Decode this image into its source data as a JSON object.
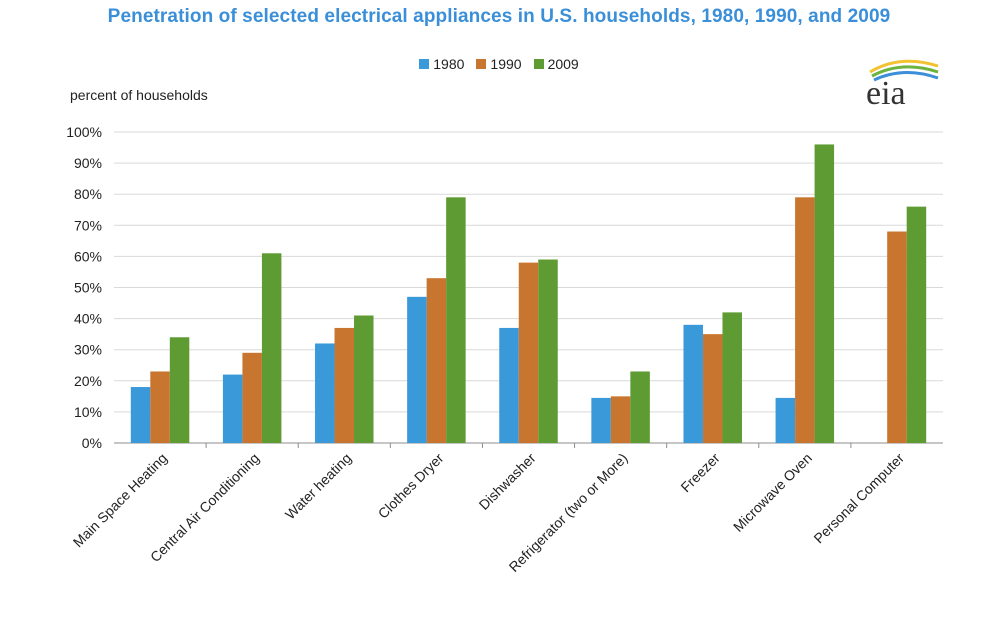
{
  "chart_data": {
    "type": "bar",
    "title": "Penetration of selected electrical appliances in U.S. households, 1980, 1990, and 2009",
    "ylabel": "percent of households",
    "xlabel": "",
    "ylim": [
      0,
      100
    ],
    "yticks": [
      "0%",
      "10%",
      "20%",
      "30%",
      "40%",
      "50%",
      "60%",
      "70%",
      "80%",
      "90%",
      "100%"
    ],
    "categories": [
      "Main Space Heating",
      "Central Air Conditioning",
      "Water heating",
      "Clothes Dryer",
      "Dishwasher",
      "Refrigerator (two or More)",
      "Freezer",
      "Microwave Oven",
      "Personal Computer"
    ],
    "series": [
      {
        "name": "1980",
        "color": "#3A9AD9",
        "values": [
          18,
          22,
          32,
          47,
          37,
          14.5,
          38,
          14.5,
          null
        ]
      },
      {
        "name": "1990",
        "color": "#C8762F",
        "values": [
          23,
          29,
          37,
          53,
          58,
          15,
          35,
          79,
          68
        ]
      },
      {
        "name": "2009",
        "color": "#5E9C33",
        "values": [
          34,
          61,
          41,
          79,
          59,
          23,
          42,
          96,
          76
        ]
      }
    ],
    "grid": true,
    "legend_position": "top-center"
  },
  "logo": {
    "text": "eia",
    "name": "eia-logo"
  }
}
